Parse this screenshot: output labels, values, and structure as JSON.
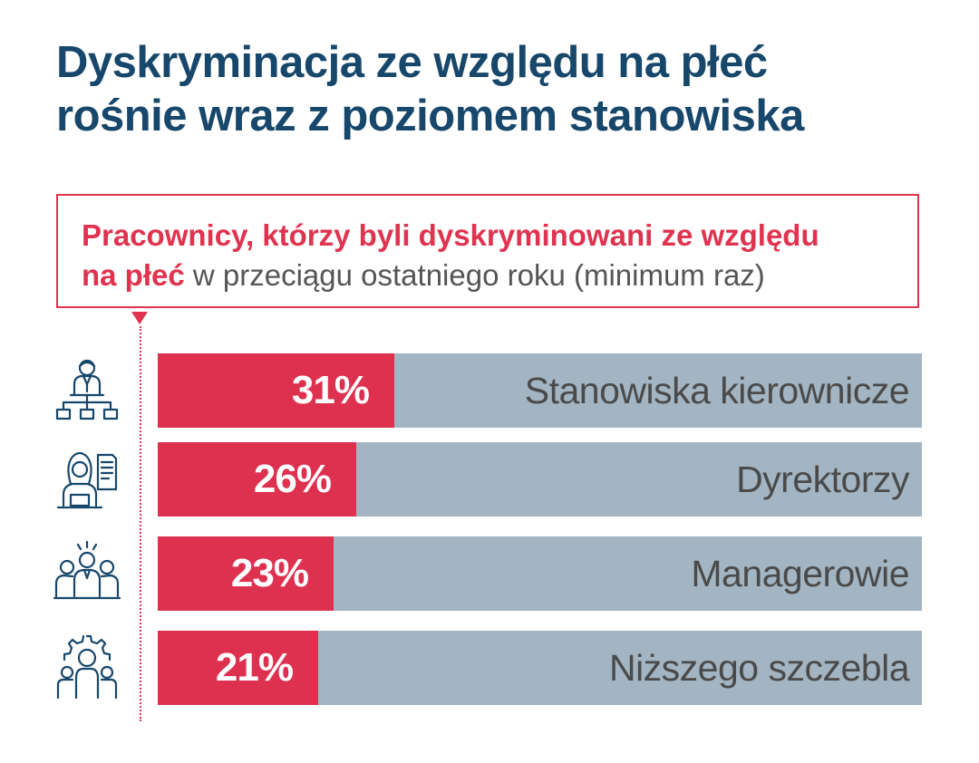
{
  "title": {
    "line1": "Dyskryminacja ze względu na płeć",
    "line2": "rośnie wraz z poziomem stanowiska"
  },
  "subtitle": {
    "bold_part1": "Pracownicy, którzy byli dyskryminowani ze względu",
    "bold_part2": "na płeć",
    "normal_part": "w przeciągu ostatniego roku (minimum raz)"
  },
  "colors": {
    "title": "#17476b",
    "accent": "#de3150",
    "bar_background": "#a3b5c2",
    "category_text": "#4a4a4a"
  },
  "icons": [
    "org-chart-person-icon",
    "woman-laptop-icon",
    "team-group-icon",
    "gear-people-icon"
  ],
  "chart_data": {
    "type": "bar",
    "orientation": "horizontal",
    "categories": [
      "Stanowiska kierownicze",
      "Dyrektorzy",
      "Managerowie",
      "Niższego szczebla"
    ],
    "values": [
      31,
      26,
      23,
      21
    ],
    "value_labels": [
      "31%",
      "26%",
      "23%",
      "21%"
    ],
    "xlim": [
      0,
      100
    ],
    "grid": false,
    "legend": "none"
  }
}
